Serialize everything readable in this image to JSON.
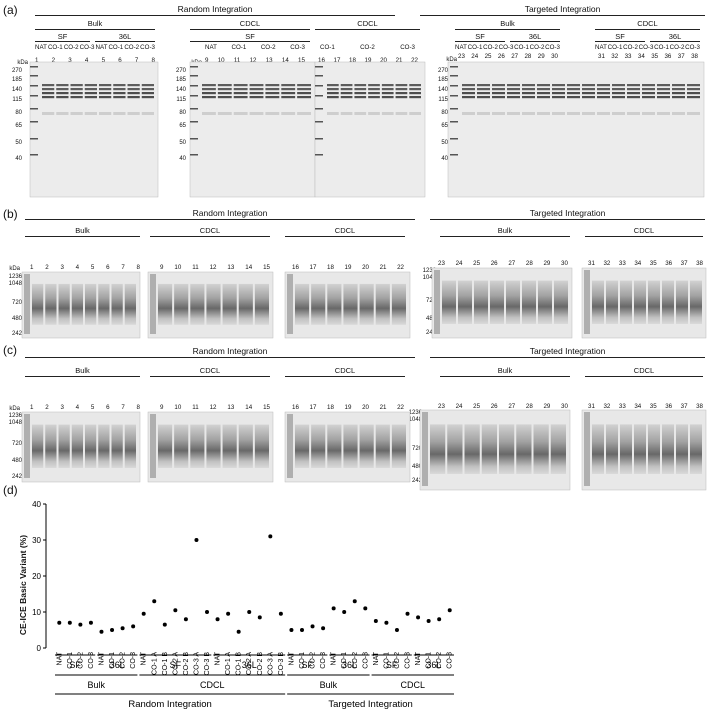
{
  "panel_labels": [
    "(a)",
    "(b)",
    "(c)",
    "(d)"
  ],
  "headers": {
    "random": "Random Integration",
    "targeted": "Targeted Integration",
    "bulk": "Bulk",
    "cdcl": "CDCL",
    "sf": "SF",
    "l36": "36L",
    "kda": "kDa"
  },
  "lane_labels": {
    "bulk_a": [
      "NAT",
      "CO-1",
      "CO-2",
      "CO-3",
      "NAT",
      "CO-1",
      "CO-2",
      "CO-3"
    ],
    "cdcl_a": [
      "NAT",
      "CO-1",
      "CO-2",
      "CO-3"
    ],
    "bulk_lanes": [
      "1",
      "2",
      "3",
      "4",
      "5",
      "6",
      "7",
      "8"
    ],
    "cdcl_sf_lanes": [
      "9",
      "10",
      "11",
      "12",
      "13",
      "14",
      "15"
    ],
    "cdcl_36l_lanes": [
      "16",
      "17",
      "18",
      "19",
      "20",
      "21",
      "22"
    ],
    "t_bulk_lanes": [
      "23",
      "24",
      "25",
      "26",
      "27",
      "28",
      "29",
      "30"
    ],
    "t_cdcl_lanes": [
      "31",
      "32",
      "33",
      "34",
      "35",
      "36",
      "37",
      "38"
    ],
    "ab": [
      "A",
      "B"
    ]
  },
  "markers_a": [
    "270",
    "185",
    "140",
    "115",
    "80",
    "65",
    "50",
    "40"
  ],
  "markers_bc": [
    "1236",
    "1048",
    "720",
    "480",
    "242"
  ],
  "chart_data": {
    "type": "scatter",
    "ylabel": "CE-ICE Basic Variant (%)",
    "ylim": [
      0,
      40
    ],
    "yticks": [
      0,
      10,
      20,
      30,
      40
    ],
    "categories": [
      "NAT",
      "CO-1",
      "CO-2",
      "CO-3",
      "NAT",
      "CO-1",
      "CO-2",
      "CO-3",
      "NAT",
      "CO-1 A",
      "CO-1 B",
      "CO-2 A",
      "CO-2 B",
      "CO-3 A",
      "CO-3 B",
      "NAT",
      "CO-1 A",
      "CO-1 B",
      "CO-2 A",
      "CO-2 B",
      "CO-3 A",
      "CO-3 B",
      "NAT",
      "CO-1",
      "CO-2",
      "CO-3",
      "NAT",
      "CO-1",
      "CO-2",
      "CO-3",
      "NAT",
      "CO-1",
      "CO-2",
      "CO-3",
      "NAT",
      "CO-1",
      "CO-2",
      "CO-3"
    ],
    "values": [
      7,
      7,
      6.5,
      7,
      4.5,
      5,
      5.5,
      6,
      9.5,
      13,
      6.5,
      10.5,
      8,
      30,
      10,
      8,
      9.5,
      4.5,
      10,
      8.5,
      31,
      9.5,
      5,
      5,
      6,
      5.5,
      11,
      10,
      13,
      11,
      7.5,
      7,
      5,
      9.5,
      8.5,
      7.5,
      8,
      10.5
    ],
    "groups_level1": [
      "SF",
      "36L",
      "SF",
      "36L",
      "SF",
      "36L",
      "SF",
      "36L"
    ],
    "groups_level2": [
      "Bulk",
      "CDCL",
      "Bulk",
      "CDCL"
    ],
    "groups_level3": [
      "Random Integration",
      "Targeted Integration"
    ]
  }
}
